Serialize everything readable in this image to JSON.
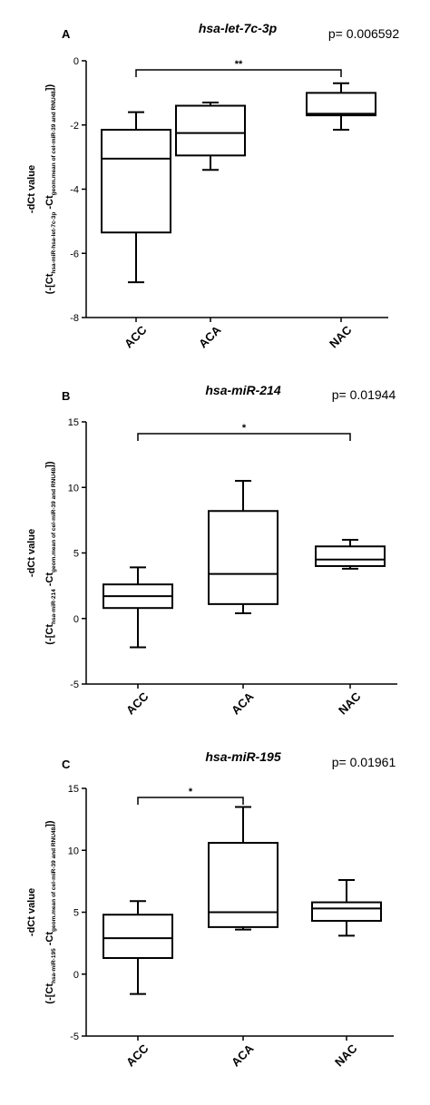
{
  "chart_data": [
    {
      "type": "box",
      "panel": "A",
      "title": "hsa-let-7c-3p",
      "p_value": "p= 0.006592",
      "ylabel_line1": "-dCt value",
      "ylabel_line2_parts": [
        "(-[Ct",
        "hsa-miR-hsa-let-7c-3p",
        " -Ct",
        "geom.mean of cel-miR-39 and RNU48",
        "])"
      ],
      "ylim": [
        -8,
        0
      ],
      "yticks": [
        0,
        -2,
        -4,
        -6,
        -8
      ],
      "categories": [
        "ACC",
        "ACA",
        "NAC"
      ],
      "boxes": [
        {
          "min": -6.9,
          "q1": -5.35,
          "median": -3.05,
          "q3": -2.15,
          "max": -1.6
        },
        {
          "min": -3.4,
          "q1": -2.95,
          "median": -2.25,
          "q3": -1.4,
          "max": -1.3
        },
        {
          "min": -2.15,
          "q1": -1.7,
          "median": -1.65,
          "q3": -1.0,
          "max": -0.7
        }
      ],
      "significance": {
        "from": "ACC",
        "to": "NAC",
        "label": "**"
      }
    },
    {
      "type": "box",
      "panel": "B",
      "title": "hsa-miR-214",
      "p_value": "p= 0.01944",
      "ylabel_line1": "-dCt value",
      "ylabel_line2_parts": [
        "(-[Ct",
        "hsa-miR-214",
        " -Ct",
        "geom.mean of cel-miR-39 and RNU48",
        "])"
      ],
      "ylim": [
        -5,
        15
      ],
      "yticks": [
        15,
        10,
        5,
        0,
        -5
      ],
      "categories": [
        "ACC",
        "ACA",
        "NAC"
      ],
      "boxes": [
        {
          "min": -2.2,
          "q1": 0.8,
          "median": 1.7,
          "q3": 2.6,
          "max": 3.9
        },
        {
          "min": 0.4,
          "q1": 1.1,
          "median": 3.4,
          "q3": 8.2,
          "max": 10.5
        },
        {
          "min": 3.8,
          "q1": 4.0,
          "median": 4.5,
          "q3": 5.5,
          "max": 6.0
        }
      ],
      "significance": {
        "from": "ACC",
        "to": "NAC",
        "label": "*"
      }
    },
    {
      "type": "box",
      "panel": "C",
      "title": "hsa-miR-195",
      "p_value": "p= 0.01961",
      "ylabel_line1": "-dCt value",
      "ylabel_line2_parts": [
        "(-[Ct",
        "hsa-miR-195",
        " -Ct",
        "geom.mean of cel-miR-39 and RNU48",
        "])"
      ],
      "ylim": [
        -5,
        15
      ],
      "yticks": [
        15,
        10,
        5,
        0,
        -5
      ],
      "categories": [
        "ACC",
        "ACA",
        "NAC"
      ],
      "boxes": [
        {
          "min": -1.6,
          "q1": 1.3,
          "median": 2.9,
          "q3": 4.8,
          "max": 5.9
        },
        {
          "min": 3.6,
          "q1": 3.8,
          "median": 5.0,
          "q3": 10.6,
          "max": 13.5
        },
        {
          "min": 3.1,
          "q1": 4.3,
          "median": 5.3,
          "q3": 5.8,
          "max": 7.6
        }
      ],
      "significance": {
        "from": "ACC",
        "to": "ACA",
        "label": "*"
      }
    }
  ]
}
